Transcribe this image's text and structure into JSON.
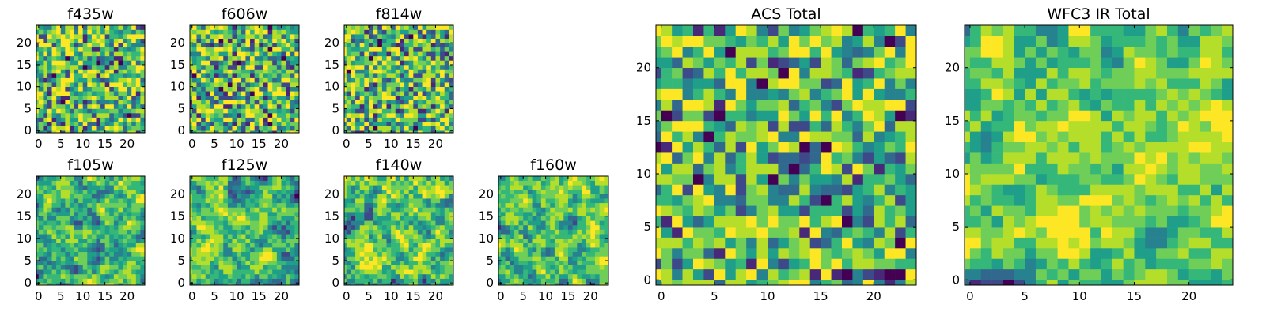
{
  "chart_data": [
    {
      "type": "heatmap",
      "title": "f435w",
      "grid_size": 25,
      "xticks": [
        0,
        5,
        10,
        15,
        20
      ],
      "yticks": [
        0,
        5,
        10,
        15,
        20
      ],
      "colormap": "viridis",
      "pattern": "pixel-noise",
      "seed": 11
    },
    {
      "type": "heatmap",
      "title": "f606w",
      "grid_size": 25,
      "xticks": [
        0,
        5,
        10,
        15,
        20
      ],
      "yticks": [
        0,
        5,
        10,
        15,
        20
      ],
      "colormap": "viridis",
      "pattern": "pixel-noise",
      "seed": 23
    },
    {
      "type": "heatmap",
      "title": "f814w",
      "grid_size": 25,
      "xticks": [
        0,
        5,
        10,
        15,
        20
      ],
      "yticks": [
        0,
        5,
        10,
        15,
        20
      ],
      "colormap": "viridis",
      "pattern": "pixel-noise",
      "seed": 37
    },
    {
      "type": "heatmap",
      "title": "f105w",
      "grid_size": 25,
      "xticks": [
        0,
        5,
        10,
        15,
        20
      ],
      "yticks": [
        0,
        5,
        10,
        15,
        20
      ],
      "colormap": "viridis",
      "pattern": "smoothed-noise",
      "seed": 41
    },
    {
      "type": "heatmap",
      "title": "f125w",
      "grid_size": 25,
      "xticks": [
        0,
        5,
        10,
        15,
        20
      ],
      "yticks": [
        0,
        5,
        10,
        15,
        20
      ],
      "colormap": "viridis",
      "pattern": "smoothed-noise",
      "seed": 53
    },
    {
      "type": "heatmap",
      "title": "f140w",
      "grid_size": 25,
      "xticks": [
        0,
        5,
        10,
        15,
        20
      ],
      "yticks": [
        0,
        5,
        10,
        15,
        20
      ],
      "colormap": "viridis",
      "pattern": "smoothed-noise",
      "seed": 67
    },
    {
      "type": "heatmap",
      "title": "f160w",
      "grid_size": 25,
      "xticks": [
        0,
        5,
        10,
        15,
        20
      ],
      "yticks": [
        0,
        5,
        10,
        15,
        20
      ],
      "colormap": "viridis",
      "pattern": "smoothed-noise",
      "seed": 79
    },
    {
      "type": "heatmap",
      "title": "ACS Total",
      "grid_size": 25,
      "xticks": [
        0,
        5,
        10,
        15,
        20
      ],
      "yticks": [
        0,
        5,
        10,
        15,
        20
      ],
      "colormap": "viridis",
      "pattern": "pixel-noise",
      "seed": 83
    },
    {
      "type": "heatmap",
      "title": "WFC3 IR Total",
      "grid_size": 25,
      "xticks": [
        0,
        5,
        10,
        15,
        20
      ],
      "yticks": [
        0,
        5,
        10,
        15,
        20
      ],
      "colormap": "viridis",
      "pattern": "smoothed-noise",
      "seed": 97
    }
  ],
  "colors": {
    "viridis": [
      "#440154",
      "#482878",
      "#3e4989",
      "#31688e",
      "#26828e",
      "#1f9e89",
      "#35b779",
      "#6ece58",
      "#b5de2b",
      "#fde725"
    ],
    "axes_edge": "#000000",
    "background": "#ffffff"
  }
}
